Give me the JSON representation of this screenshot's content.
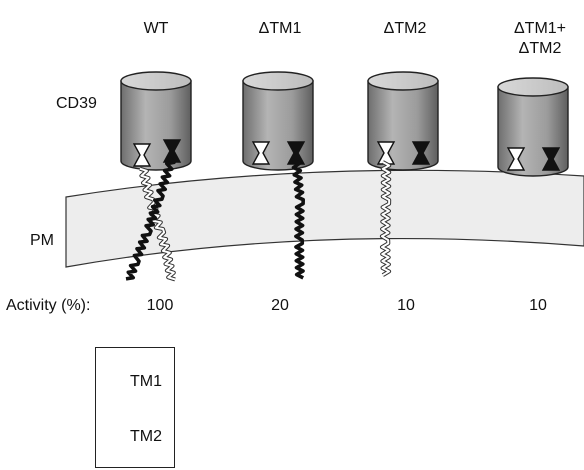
{
  "columns": [
    {
      "id": "wt",
      "title": "WT",
      "activity": "100"
    },
    {
      "id": "dtm1",
      "title": "ΔTM1",
      "activity": "20"
    },
    {
      "id": "dtm2",
      "title": "ΔTM2",
      "activity": "10"
    },
    {
      "id": "dtm12",
      "title": "ΔTM1+\nΔTM2",
      "title_line1": "ΔTM1+",
      "title_line2": "ΔTM2",
      "activity": "10"
    }
  ],
  "labels": {
    "protein": "CD39",
    "membrane": "PM",
    "activity_row": "Activity (%):"
  },
  "legend": {
    "items": [
      {
        "label": "TM1",
        "style": "white-wavy"
      },
      {
        "label": "TM2",
        "style": "black-wavy"
      }
    ]
  },
  "colors": {
    "cylinder_gray": "#9a9a9a",
    "membrane_fill": "#ededed",
    "tm1": "#ffffff",
    "tm2": "#111111"
  }
}
